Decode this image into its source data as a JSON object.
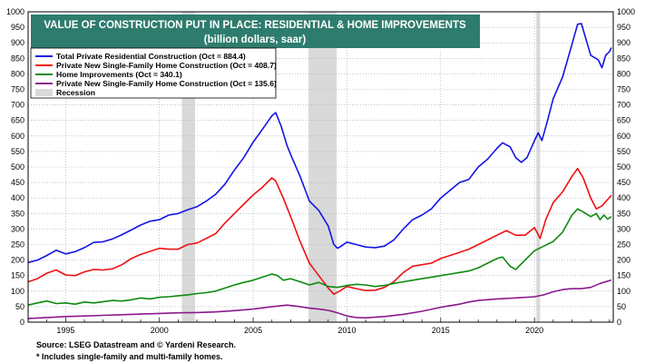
{
  "chart_data": {
    "type": "line",
    "title": "VALUE OF CONSTRUCTION PUT IN PLACE: RESIDENTIAL & HOME IMPROVEMENTS",
    "subtitle": "(billion dollars, saar)",
    "x_ticks": [
      "1995",
      "2000",
      "2005",
      "2010",
      "2015",
      "2020"
    ],
    "y_ticks": [
      "0",
      "50",
      "100",
      "150",
      "200",
      "250",
      "300",
      "350",
      "400",
      "450",
      "500",
      "550",
      "600",
      "650",
      "700",
      "750",
      "800",
      "850",
      "900",
      "950",
      "1000"
    ],
    "xlim": [
      1993.0,
      2024.2
    ],
    "ylim": [
      0,
      1000
    ],
    "grid": true,
    "legend_position": "top-left",
    "recession_label": "Recession",
    "recessions": [
      [
        2001.2,
        2001.9
      ],
      [
        2007.95,
        2009.45
      ],
      [
        2020.1,
        2020.3
      ]
    ],
    "series": [
      {
        "name": "Total Private Residential Construction (Oct = 884.4)",
        "color": "#1414e6",
        "points": [
          [
            1993.0,
            192
          ],
          [
            1993.5,
            200
          ],
          [
            1994.0,
            215
          ],
          [
            1994.5,
            232
          ],
          [
            1995.0,
            220
          ],
          [
            1995.5,
            227
          ],
          [
            1996.0,
            240
          ],
          [
            1996.5,
            257
          ],
          [
            1997.0,
            259
          ],
          [
            1997.5,
            268
          ],
          [
            1998.0,
            282
          ],
          [
            1998.5,
            297
          ],
          [
            1999.0,
            313
          ],
          [
            1999.5,
            325
          ],
          [
            2000.0,
            330
          ],
          [
            2000.5,
            345
          ],
          [
            2001.0,
            350
          ],
          [
            2001.5,
            362
          ],
          [
            2002.0,
            372
          ],
          [
            2002.5,
            390
          ],
          [
            2003.0,
            412
          ],
          [
            2003.5,
            445
          ],
          [
            2004.0,
            490
          ],
          [
            2004.5,
            530
          ],
          [
            2005.0,
            580
          ],
          [
            2005.5,
            622
          ],
          [
            2006.0,
            665
          ],
          [
            2006.2,
            675
          ],
          [
            2006.5,
            630
          ],
          [
            2006.8,
            570
          ],
          [
            2007.0,
            540
          ],
          [
            2007.5,
            470
          ],
          [
            2008.0,
            390
          ],
          [
            2008.5,
            360
          ],
          [
            2009.0,
            310
          ],
          [
            2009.3,
            250
          ],
          [
            2009.5,
            238
          ],
          [
            2009.7,
            245
          ],
          [
            2010.0,
            258
          ],
          [
            2010.5,
            250
          ],
          [
            2011.0,
            242
          ],
          [
            2011.5,
            240
          ],
          [
            2012.0,
            245
          ],
          [
            2012.5,
            265
          ],
          [
            2013.0,
            300
          ],
          [
            2013.5,
            330
          ],
          [
            2014.0,
            345
          ],
          [
            2014.5,
            365
          ],
          [
            2015.0,
            400
          ],
          [
            2015.5,
            425
          ],
          [
            2016.0,
            450
          ],
          [
            2016.5,
            460
          ],
          [
            2017.0,
            500
          ],
          [
            2017.5,
            525
          ],
          [
            2018.0,
            560
          ],
          [
            2018.3,
            578
          ],
          [
            2018.7,
            565
          ],
          [
            2019.0,
            530
          ],
          [
            2019.3,
            515
          ],
          [
            2019.6,
            530
          ],
          [
            2020.0,
            585
          ],
          [
            2020.2,
            610
          ],
          [
            2020.4,
            585
          ],
          [
            2020.7,
            650
          ],
          [
            2021.0,
            720
          ],
          [
            2021.5,
            790
          ],
          [
            2022.0,
            895
          ],
          [
            2022.3,
            960
          ],
          [
            2022.5,
            962
          ],
          [
            2022.8,
            900
          ],
          [
            2023.0,
            860
          ],
          [
            2023.4,
            845
          ],
          [
            2023.6,
            820
          ],
          [
            2023.8,
            860
          ],
          [
            2024.0,
            872
          ],
          [
            2024.1,
            884.4
          ]
        ]
      },
      {
        "name": "Private New Single-Family Home Construction (Oct = 408.7)",
        "color": "#ee1111",
        "points": [
          [
            1993.0,
            130
          ],
          [
            1993.5,
            140
          ],
          [
            1994.0,
            158
          ],
          [
            1994.5,
            168
          ],
          [
            1995.0,
            152
          ],
          [
            1995.5,
            150
          ],
          [
            1996.0,
            162
          ],
          [
            1996.5,
            170
          ],
          [
            1997.0,
            168
          ],
          [
            1997.5,
            172
          ],
          [
            1998.0,
            185
          ],
          [
            1998.5,
            205
          ],
          [
            1999.0,
            218
          ],
          [
            1999.5,
            228
          ],
          [
            2000.0,
            238
          ],
          [
            2000.5,
            235
          ],
          [
            2001.0,
            235
          ],
          [
            2001.5,
            250
          ],
          [
            2002.0,
            255
          ],
          [
            2002.5,
            270
          ],
          [
            2003.0,
            285
          ],
          [
            2003.5,
            320
          ],
          [
            2004.0,
            350
          ],
          [
            2004.5,
            380
          ],
          [
            2005.0,
            410
          ],
          [
            2005.5,
            435
          ],
          [
            2006.0,
            465
          ],
          [
            2006.2,
            455
          ],
          [
            2006.6,
            400
          ],
          [
            2007.0,
            340
          ],
          [
            2007.5,
            260
          ],
          [
            2008.0,
            190
          ],
          [
            2008.5,
            150
          ],
          [
            2009.0,
            110
          ],
          [
            2009.3,
            90
          ],
          [
            2009.6,
            100
          ],
          [
            2010.0,
            115
          ],
          [
            2010.5,
            108
          ],
          [
            2011.0,
            102
          ],
          [
            2011.5,
            103
          ],
          [
            2012.0,
            112
          ],
          [
            2012.5,
            130
          ],
          [
            2013.0,
            160
          ],
          [
            2013.5,
            180
          ],
          [
            2014.0,
            185
          ],
          [
            2014.5,
            190
          ],
          [
            2015.0,
            205
          ],
          [
            2015.5,
            215
          ],
          [
            2016.0,
            225
          ],
          [
            2016.5,
            235
          ],
          [
            2017.0,
            250
          ],
          [
            2017.5,
            265
          ],
          [
            2018.0,
            280
          ],
          [
            2018.5,
            295
          ],
          [
            2019.0,
            280
          ],
          [
            2019.5,
            280
          ],
          [
            2020.0,
            305
          ],
          [
            2020.3,
            270
          ],
          [
            2020.6,
            330
          ],
          [
            2021.0,
            385
          ],
          [
            2021.5,
            420
          ],
          [
            2022.0,
            470
          ],
          [
            2022.3,
            495
          ],
          [
            2022.6,
            465
          ],
          [
            2023.0,
            400
          ],
          [
            2023.3,
            365
          ],
          [
            2023.6,
            375
          ],
          [
            2023.9,
            395
          ],
          [
            2024.1,
            408.7
          ]
        ]
      },
      {
        "name": "Home Improvements (Oct = 340.1)",
        "color": "#0e8a0e",
        "points": [
          [
            1993.0,
            55
          ],
          [
            1993.5,
            62
          ],
          [
            1994.0,
            68
          ],
          [
            1994.5,
            60
          ],
          [
            1995.0,
            62
          ],
          [
            1995.5,
            58
          ],
          [
            1996.0,
            65
          ],
          [
            1996.5,
            62
          ],
          [
            1997.0,
            66
          ],
          [
            1997.5,
            70
          ],
          [
            1998.0,
            68
          ],
          [
            1998.5,
            72
          ],
          [
            1999.0,
            78
          ],
          [
            1999.5,
            75
          ],
          [
            2000.0,
            80
          ],
          [
            2000.5,
            82
          ],
          [
            2001.0,
            85
          ],
          [
            2001.5,
            88
          ],
          [
            2002.0,
            92
          ],
          [
            2002.5,
            95
          ],
          [
            2003.0,
            100
          ],
          [
            2003.5,
            110
          ],
          [
            2004.0,
            120
          ],
          [
            2004.5,
            128
          ],
          [
            2005.0,
            135
          ],
          [
            2005.5,
            145
          ],
          [
            2006.0,
            155
          ],
          [
            2006.3,
            150
          ],
          [
            2006.6,
            135
          ],
          [
            2007.0,
            140
          ],
          [
            2007.5,
            130
          ],
          [
            2008.0,
            120
          ],
          [
            2008.5,
            128
          ],
          [
            2009.0,
            115
          ],
          [
            2009.5,
            112
          ],
          [
            2010.0,
            118
          ],
          [
            2010.5,
            122
          ],
          [
            2011.0,
            120
          ],
          [
            2011.5,
            115
          ],
          [
            2012.0,
            118
          ],
          [
            2012.5,
            125
          ],
          [
            2013.0,
            130
          ],
          [
            2013.5,
            135
          ],
          [
            2014.0,
            140
          ],
          [
            2014.5,
            145
          ],
          [
            2015.0,
            150
          ],
          [
            2015.5,
            155
          ],
          [
            2016.0,
            160
          ],
          [
            2016.5,
            165
          ],
          [
            2017.0,
            175
          ],
          [
            2017.5,
            190
          ],
          [
            2018.0,
            205
          ],
          [
            2018.3,
            210
          ],
          [
            2018.7,
            180
          ],
          [
            2019.0,
            170
          ],
          [
            2019.5,
            200
          ],
          [
            2020.0,
            230
          ],
          [
            2020.5,
            245
          ],
          [
            2021.0,
            260
          ],
          [
            2021.5,
            290
          ],
          [
            2022.0,
            345
          ],
          [
            2022.3,
            365
          ],
          [
            2022.6,
            355
          ],
          [
            2023.0,
            340
          ],
          [
            2023.3,
            350
          ],
          [
            2023.5,
            330
          ],
          [
            2023.7,
            345
          ],
          [
            2023.9,
            332
          ],
          [
            2024.1,
            340.1
          ]
        ]
      },
      {
        "name": "Private New Single-Family Home Construction (Oct = 135.6)",
        "color": "#8b1a8b",
        "points": [
          [
            1993.0,
            12
          ],
          [
            1994.0,
            15
          ],
          [
            1995.0,
            18
          ],
          [
            1996.0,
            20
          ],
          [
            1997.0,
            22
          ],
          [
            1998.0,
            24
          ],
          [
            1999.0,
            26
          ],
          [
            2000.0,
            28
          ],
          [
            2001.0,
            30
          ],
          [
            2002.0,
            31
          ],
          [
            2003.0,
            33
          ],
          [
            2004.0,
            37
          ],
          [
            2005.0,
            42
          ],
          [
            2006.0,
            50
          ],
          [
            2006.8,
            55
          ],
          [
            2007.5,
            50
          ],
          [
            2008.0,
            45
          ],
          [
            2008.5,
            42
          ],
          [
            2009.0,
            38
          ],
          [
            2009.5,
            30
          ],
          [
            2010.0,
            20
          ],
          [
            2010.5,
            15
          ],
          [
            2011.0,
            14
          ],
          [
            2012.0,
            18
          ],
          [
            2013.0,
            25
          ],
          [
            2014.0,
            35
          ],
          [
            2015.0,
            48
          ],
          [
            2016.0,
            58
          ],
          [
            2016.5,
            65
          ],
          [
            2017.0,
            70
          ],
          [
            2018.0,
            75
          ],
          [
            2019.0,
            78
          ],
          [
            2020.0,
            82
          ],
          [
            2020.5,
            88
          ],
          [
            2021.0,
            98
          ],
          [
            2021.5,
            105
          ],
          [
            2022.0,
            108
          ],
          [
            2022.5,
            108
          ],
          [
            2023.0,
            112
          ],
          [
            2023.5,
            125
          ],
          [
            2024.1,
            135.6
          ]
        ]
      }
    ]
  },
  "footer": {
    "source": "Source: LSEG Datastream and © Yardeni Research.",
    "note": "* Includes single-family and multi-family homes."
  }
}
